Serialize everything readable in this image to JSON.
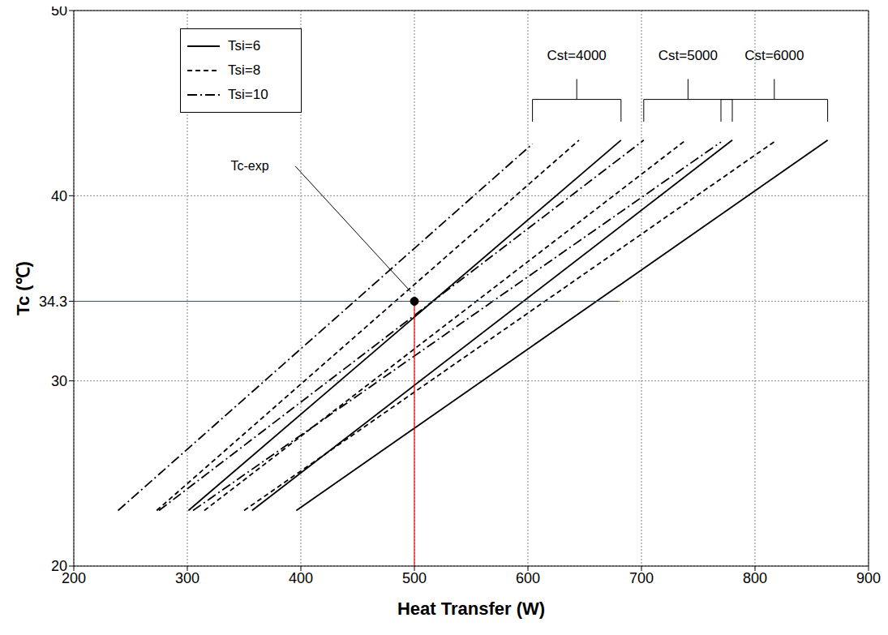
{
  "chart_data": {
    "type": "line",
    "x_label": "Heat Transfer (W)",
    "y_label": "Tc (℃)",
    "xlim": [
      200,
      900
    ],
    "xticks": [
      200,
      300,
      400,
      500,
      600,
      700,
      800,
      900
    ],
    "ylim": [
      20,
      50
    ],
    "yticks": [
      20,
      30,
      34.3,
      40,
      50
    ],
    "grid": true,
    "legend": "upper left",
    "legend_entries": [
      {
        "name": "Tsi=6",
        "line_style": "solid"
      },
      {
        "name": "Tsi=8",
        "line_style": "dashed"
      },
      {
        "name": "Tsi=10",
        "line_style": "dashdot"
      }
    ],
    "series": [
      {
        "group": "Cst=4000",
        "line_style": "dashdot",
        "color": "#000000",
        "x": [
          239,
          604
        ],
        "y": [
          23,
          42.8
        ]
      },
      {
        "group": "Cst=4000",
        "line_style": "dashed",
        "color": "#000000",
        "x": [
          273,
          645
        ],
        "y": [
          23,
          43
        ]
      },
      {
        "group": "Cst=4000",
        "line_style": "solid",
        "color": "#000000",
        "x": [
          301,
          682
        ],
        "y": [
          23,
          43
        ]
      },
      {
        "group": "Cst=5000",
        "line_style": "dashdot",
        "color": "#000000",
        "x": [
          275,
          702
        ],
        "y": [
          23,
          43
        ]
      },
      {
        "group": "Cst=5000",
        "line_style": "dashed",
        "color": "#000000",
        "x": [
          315,
          739
        ],
        "y": [
          23,
          43
        ]
      },
      {
        "group": "Cst=5000",
        "line_style": "solid",
        "color": "#000000",
        "x": [
          357,
          780
        ],
        "y": [
          23,
          43
        ]
      },
      {
        "group": "Cst=6000",
        "line_style": "dashdot",
        "color": "#000000",
        "x": [
          305,
          770
        ],
        "y": [
          23,
          42.9
        ]
      },
      {
        "group": "Cst=6000",
        "line_style": "dashed",
        "color": "#000000",
        "x": [
          350,
          819
        ],
        "y": [
          23,
          43
        ]
      },
      {
        "group": "Cst=6000",
        "line_style": "solid",
        "color": "#000000",
        "x": [
          396,
          864
        ],
        "y": [
          23,
          43
        ]
      }
    ],
    "annotation": {
      "text": "Tc-exp",
      "x": 500,
      "y": 34.3,
      "ref_line_x_end": 680,
      "color": "#ff0000"
    }
  }
}
